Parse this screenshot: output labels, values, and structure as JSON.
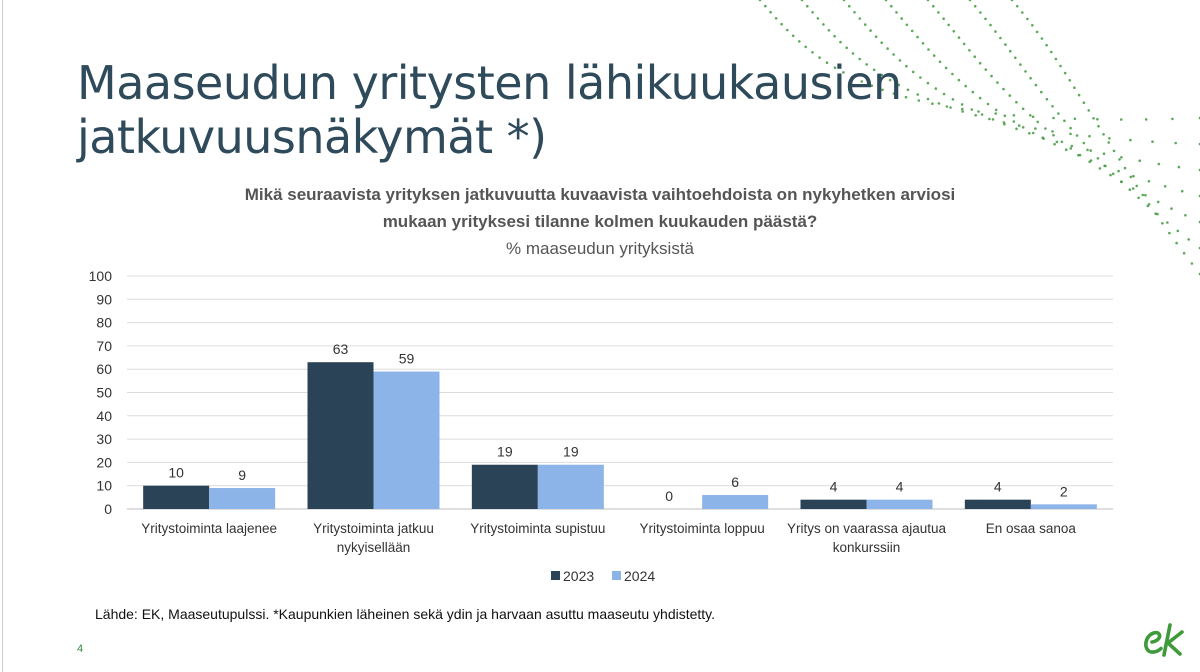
{
  "slide": {
    "title_line1": "Maaseudun yritysten lähikuukausien",
    "title_line2": "jatkuvuusnäkymät *)",
    "source": "Lähde: EK, Maaseutupulssi. *Kaupunkien läheinen sekä ydin ja harvaan asuttu maaseutu yhdistetty.",
    "page_number": "4",
    "logo_text": "ek",
    "brand_color": "#3f9a3c"
  },
  "chart_data": {
    "type": "bar",
    "title_line1": "Mikä seuraavista yrityksen jatkuvuutta kuvaavista vaihtoehdoista on nykyhetken arviosi",
    "title_line2": "mukaan yrityksesi tilanne kolmen kuukauden päästä?",
    "subtitle": "% maaseudun yrityksistä",
    "categories": [
      [
        "Yritystoiminta laajenee"
      ],
      [
        "Yritystoiminta jatkuu",
        "nykyisellään"
      ],
      [
        "Yritystoiminta supistuu"
      ],
      [
        "Yritystoiminta loppuu"
      ],
      [
        "Yritys on vaarassa ajautua",
        "konkurssiin"
      ],
      [
        "En osaa sanoa"
      ]
    ],
    "series": [
      {
        "name": "2023",
        "color": "#2b4357",
        "values": [
          10,
          63,
          19,
          0,
          4,
          4
        ]
      },
      {
        "name": "2024",
        "color": "#8db4e8",
        "values": [
          9,
          59,
          19,
          6,
          4,
          2
        ]
      }
    ],
    "ylim": [
      0,
      100
    ],
    "yticks": [
      0,
      10,
      20,
      30,
      40,
      50,
      60,
      70,
      80,
      90,
      100
    ],
    "grid": true,
    "legend_position": "bottom",
    "data_labels": true
  }
}
